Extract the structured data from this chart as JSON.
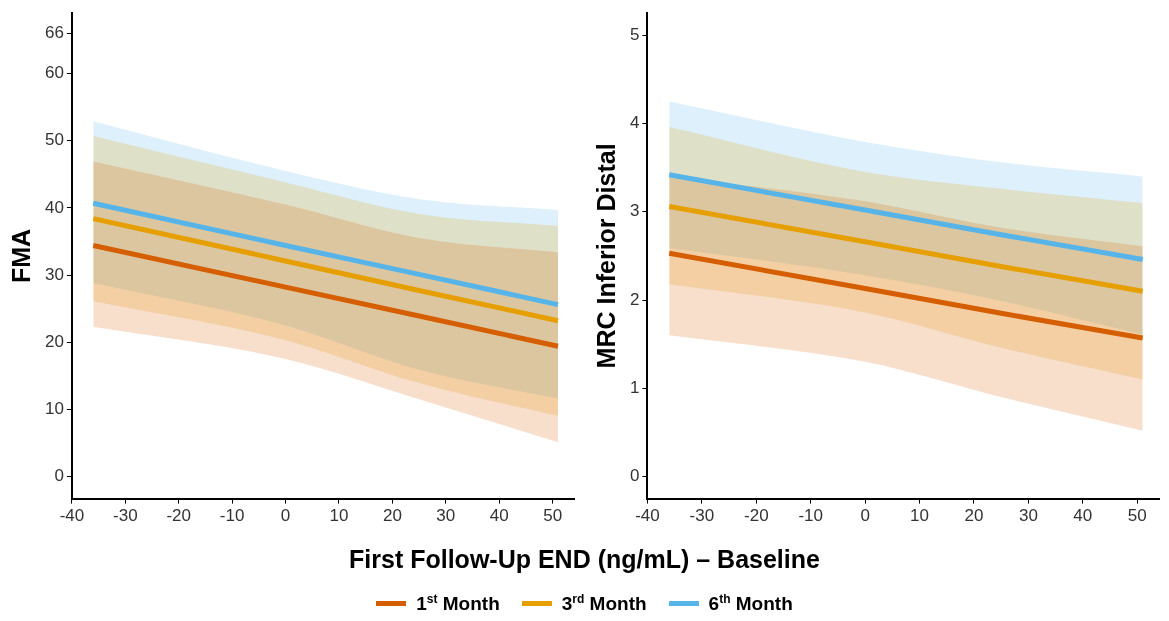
{
  "chart_data": [
    {
      "type": "line",
      "ylabel": "FMA",
      "xlabel": "First Follow-Up END (ng/mL) – Baseline",
      "legend": "bottom",
      "xlim": [
        -40,
        54
      ],
      "xticks": [
        -40,
        -30,
        -20,
        -10,
        0,
        10,
        20,
        30,
        40,
        50
      ],
      "ylim": [
        -3.3,
        69
      ],
      "yticks": [
        0,
        10,
        20,
        30,
        40,
        50,
        60,
        66
      ],
      "series": [
        {
          "name": "1$^{st}$ Month",
          "color": "#d55e00",
          "x": [
            -36,
            0,
            25,
            51
          ],
          "values": [
            34.4,
            28.2,
            23.9,
            19.4
          ],
          "lower": [
            22.3,
            17.5,
            11.5,
            5.1
          ],
          "upper": [
            46.9,
            40.5,
            35.5,
            33.4
          ]
        },
        {
          "name": "3$^{rd}$ Month",
          "color": "#e69f00",
          "x": [
            -36,
            0,
            25,
            51
          ],
          "values": [
            38.4,
            32.1,
            27.7,
            23.2
          ],
          "lower": [
            26.1,
            20.3,
            13.9,
            9.0
          ],
          "upper": [
            50.7,
            43.8,
            39.1,
            37.3
          ]
        },
        {
          "name": "6$^{th}$ Month",
          "color": "#56b4e9",
          "x": [
            -36,
            0,
            25,
            51
          ],
          "values": [
            40.7,
            34.4,
            30.1,
            25.6
          ],
          "lower": [
            28.8,
            22.5,
            15.9,
            11.6
          ],
          "upper": [
            52.9,
            45.5,
            41.3,
            39.7
          ]
        }
      ]
    },
    {
      "type": "line",
      "ylabel": "MRC Inferior Distal",
      "xlim": [
        -40,
        54
      ],
      "xticks": [
        -40,
        -30,
        -20,
        -10,
        0,
        10,
        20,
        30,
        40,
        50
      ],
      "ylim": [
        -0.25,
        5.25
      ],
      "yticks": [
        0,
        1,
        2,
        3,
        4,
        5
      ],
      "series": [
        {
          "color": "#d55e00",
          "x": [
            -36,
            0,
            25,
            51
          ],
          "values": [
            2.53,
            2.13,
            1.85,
            1.57
          ],
          "lower": [
            1.6,
            1.3,
            0.9,
            0.52
          ],
          "upper": [
            3.4,
            3.12,
            2.82,
            2.61
          ]
        },
        {
          "color": "#e69f00",
          "x": [
            -36,
            0,
            25,
            51
          ],
          "values": [
            3.06,
            2.66,
            2.38,
            2.1
          ],
          "lower": [
            2.18,
            1.86,
            1.46,
            1.1
          ],
          "upper": [
            3.96,
            3.45,
            3.26,
            3.1
          ]
        },
        {
          "color": "#56b4e9",
          "x": [
            -36,
            0,
            25,
            51
          ],
          "values": [
            3.42,
            3.02,
            2.74,
            2.46
          ],
          "lower": [
            2.59,
            2.28,
            1.99,
            1.61
          ],
          "upper": [
            4.25,
            3.79,
            3.56,
            3.4
          ]
        }
      ]
    }
  ]
}
